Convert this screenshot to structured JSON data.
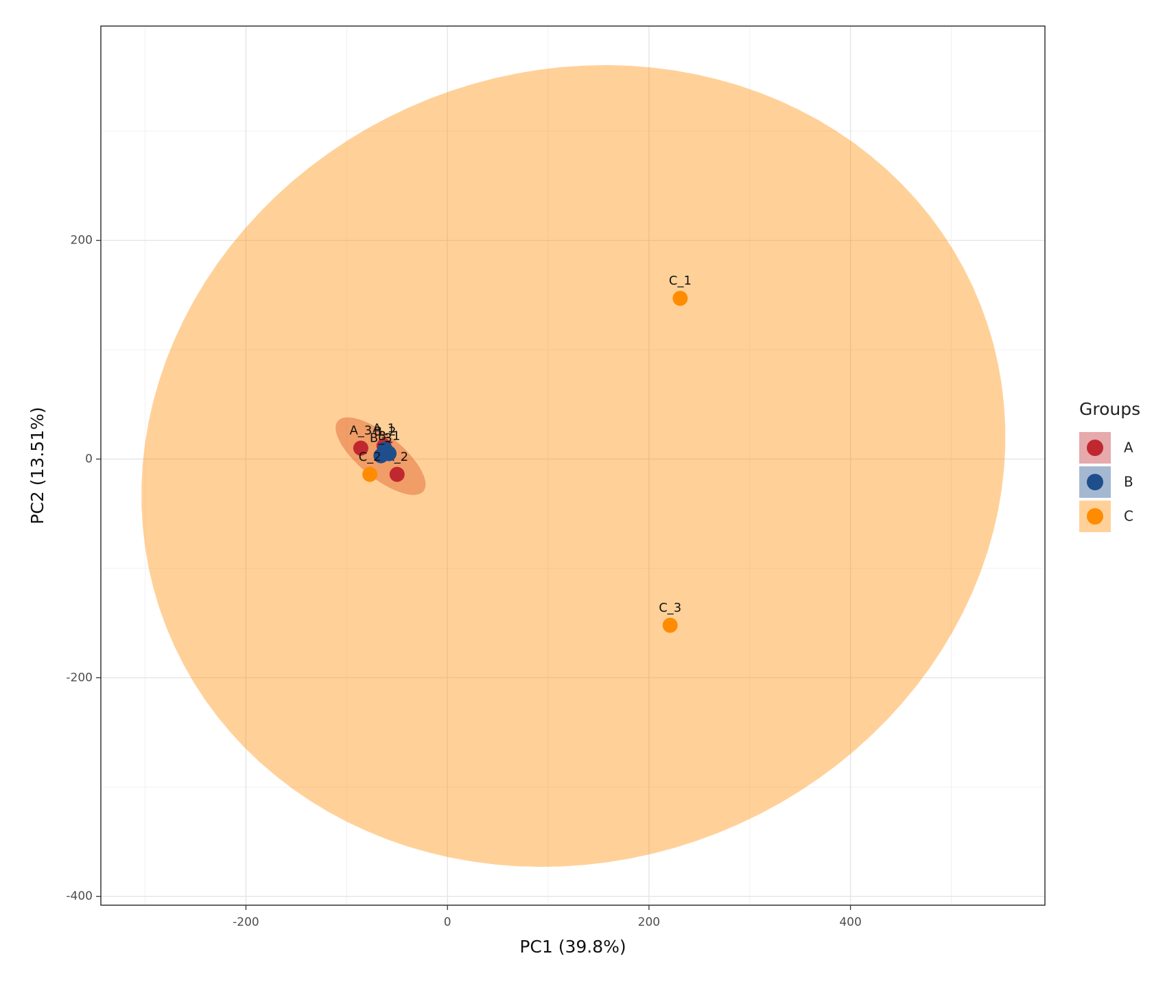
{
  "chart_data": {
    "type": "scatter",
    "x_label": "PC1 (39.8%)",
    "y_label": "PC2 (13.51%)",
    "legend_title": "Groups",
    "legend_position": "right",
    "grid": true,
    "ellipses": true,
    "xlim": [
      -344,
      593
    ],
    "ylim": [
      -408,
      396
    ],
    "xticks": [
      -200,
      0,
      200,
      400
    ],
    "yticks": [
      -400,
      -200,
      0,
      200
    ],
    "series": [
      {
        "name": "A",
        "color": "#c0282f",
        "labels": [
          "A_1",
          "A_2",
          "A_3"
        ],
        "x": [
          -63,
          -50,
          -86
        ],
        "values": [
          12,
          -14,
          10
        ]
      },
      {
        "name": "B",
        "color": "#1f4e8c",
        "labels": [
          "B_1",
          "B_2",
          "B_3"
        ],
        "x": [
          -58,
          -62,
          -66
        ],
        "values": [
          5,
          9,
          3
        ]
      },
      {
        "name": "C",
        "color": "#ff8c00",
        "labels": [
          "C_1",
          "C_2",
          "C_3"
        ],
        "x": [
          231,
          -77,
          221
        ],
        "values": [
          147,
          -14,
          -152
        ]
      }
    ]
  }
}
